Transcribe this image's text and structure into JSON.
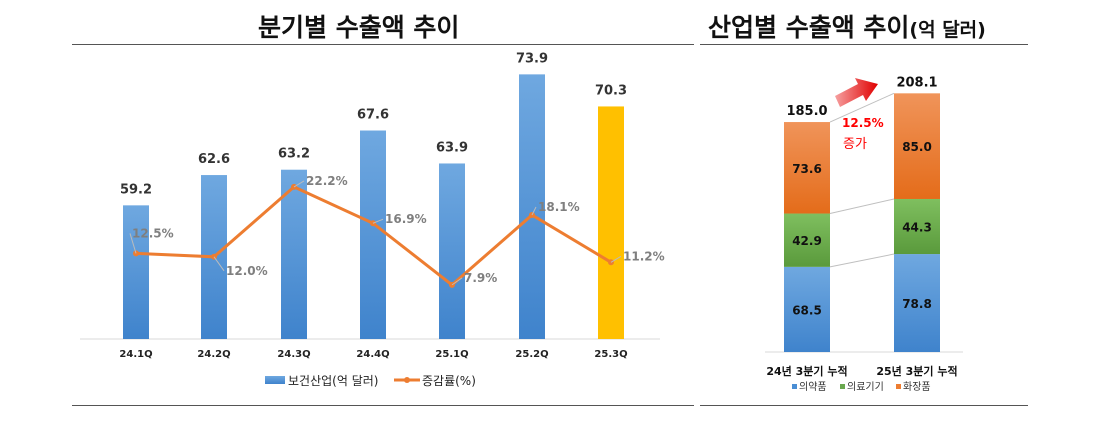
{
  "left_title": "분기별 수출액 추이",
  "right_title": "산업별 수출액 추이",
  "right_title_suffix": "(억 달러)",
  "colors": {
    "bar": "#4a8ed4",
    "bar_highlight": "#ffc000",
    "line": "#ed7d31",
    "pharma": "#4a8ed4",
    "device": "#6aa84f",
    "cosmetics": "#ed7d31",
    "increase": "#ff0000"
  },
  "chart_data": [
    {
      "type": "bar+line",
      "categories": [
        "24.1Q",
        "24.2Q",
        "24.3Q",
        "24.4Q",
        "25.1Q",
        "25.2Q",
        "25.3Q"
      ],
      "series": [
        {
          "name": "보건산업(억 달러)",
          "type": "bar",
          "values": [
            59.2,
            62.6,
            63.2,
            67.6,
            63.9,
            73.9,
            70.3
          ],
          "labels": [
            "59.2",
            "62.6",
            "63.2",
            "67.6",
            "63.9",
            "73.9",
            "70.3"
          ],
          "highlight_index": 6
        },
        {
          "name": "증감률(%)",
          "type": "line",
          "values": [
            12.5,
            12.0,
            22.2,
            16.9,
            7.9,
            18.1,
            11.2
          ],
          "labels": [
            "12.5%",
            "12.0%",
            "22.2%",
            "16.9%",
            "7.9%",
            "18.1%",
            "11.2%"
          ]
        }
      ],
      "legend_position": "bottom",
      "grid": false
    },
    {
      "type": "stacked-bar",
      "categories": [
        "24년 3분기 누적",
        "25년 3분기 누적"
      ],
      "series": [
        {
          "name": "의약품",
          "values": [
            68.5,
            78.8
          ]
        },
        {
          "name": "의료기기",
          "values": [
            42.9,
            44.3
          ]
        },
        {
          "name": "화장품",
          "values": [
            73.6,
            85.0
          ]
        }
      ],
      "totals": [
        "185.0",
        "208.1"
      ],
      "annotation": {
        "value": "12.5%",
        "text": "증가"
      },
      "legend_position": "bottom"
    }
  ]
}
